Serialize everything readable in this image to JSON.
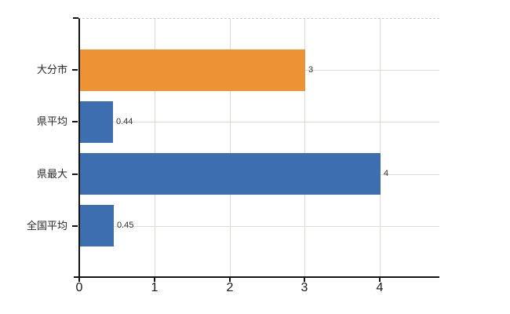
{
  "chart_data": {
    "type": "bar",
    "orientation": "horizontal",
    "title": "",
    "categories": [
      "大分市",
      "県平均",
      "県最大",
      "全国平均"
    ],
    "values": [
      3,
      0.44,
      4,
      0.45
    ],
    "value_labels": [
      "3",
      "0.44",
      "4",
      "0.45"
    ],
    "bar_colors": [
      "#ee9236",
      "#3d6eb0",
      "#3d6eb0",
      "#3d6eb0"
    ],
    "x_ticks": [
      0,
      1,
      2,
      3,
      4
    ],
    "x_tick_labels": [
      "0",
      "1",
      "2",
      "3",
      "4"
    ],
    "xlim": [
      0,
      4.78
    ],
    "grid": "on",
    "legend": "none"
  },
  "style": {
    "background_color": "#ffffff",
    "bar_orange": "#ee9236",
    "bar_blue": "#3d6eb0",
    "axis_color": "#141414",
    "grid_color": "#d9ddd3",
    "top_border_color": "#c8ccc4",
    "category_label_color": "#2a2a2a",
    "value_label_color": "#333333",
    "tick_label_color": "#1a1a1a"
  }
}
